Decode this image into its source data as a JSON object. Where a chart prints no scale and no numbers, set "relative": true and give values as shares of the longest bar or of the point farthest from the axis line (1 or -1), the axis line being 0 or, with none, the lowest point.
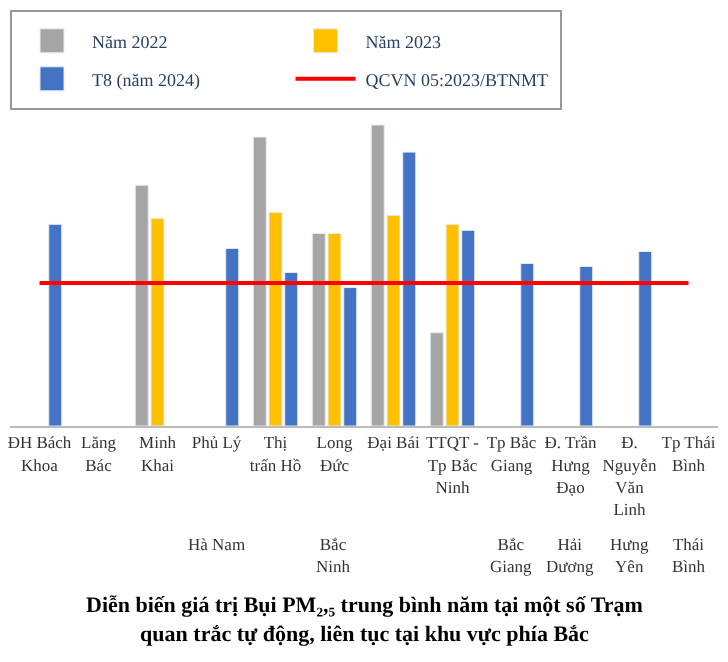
{
  "chart_data": {
    "type": "bar",
    "relative": true,
    "title": "Diễn biến giá trị Bụi PM₂,₅ trung bình năm tại một số Trạm quan trắc tự động, liên tục tại khu vực phía Bắc",
    "categories": [
      "ĐH Bách Khoa",
      "Lăng Bác",
      "Minh Khai",
      "Phủ Lý",
      "Thị trấn Hồ",
      "Long Đức",
      "Đại Bái",
      "TTQT - Tp Bắc Ninh",
      "Tp Bắc Giang",
      "Đ. Trần Hưng Đạo",
      "Đ. Nguyễn Văn Linh",
      "Tp Thái Bình"
    ],
    "series": [
      {
        "name": "Năm 2022",
        "color": "#a5a5a5",
        "values": [
          null,
          null,
          0.8,
          null,
          0.96,
          0.64,
          1.0,
          0.31,
          null,
          null,
          null,
          null
        ]
      },
      {
        "name": "Năm 2023",
        "color": "#ffc000",
        "values": [
          null,
          null,
          0.69,
          null,
          0.71,
          0.64,
          0.7,
          0.67,
          null,
          null,
          null,
          null
        ]
      },
      {
        "name": "T8 (năm 2024)",
        "color": "#4472c4",
        "values": [
          0.67,
          null,
          null,
          0.59,
          0.51,
          0.46,
          0.91,
          0.65,
          0.54,
          0.53,
          0.58,
          null
        ]
      },
      {
        "name": "QCVN 05:2023/BTNMT",
        "type": "line",
        "color": "#ff0000",
        "values": [
          0.475,
          0.475,
          0.475,
          0.475,
          0.475,
          0.475,
          0.475,
          0.475,
          0.475,
          0.475,
          0.475,
          0.475
        ]
      }
    ],
    "annotations": [
      "Hà Nam",
      "Bắc Ninh",
      "Bắc Giang",
      "Hải Dương",
      "Hưng Yên",
      "Thái Bình"
    ],
    "legend": "top"
  }
}
